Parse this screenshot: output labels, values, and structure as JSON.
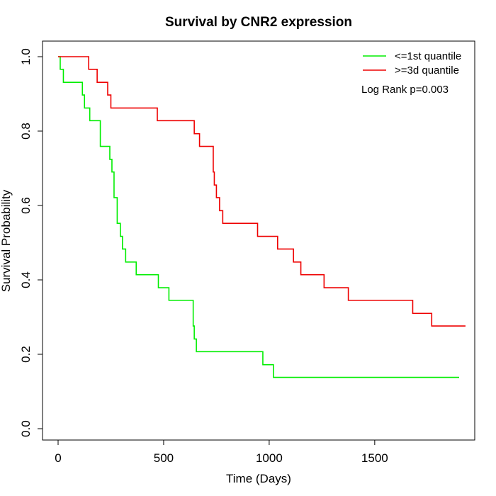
{
  "chart_data": {
    "type": "line",
    "title": "Survival by CNR2 expression",
    "xlabel": "Time (Days)",
    "ylabel": "Survival Probability",
    "xlim": [
      0,
      1950
    ],
    "ylim": [
      0,
      1.05
    ],
    "x_ticks": [
      0,
      500,
      1000,
      1500
    ],
    "x_tick_labels": [
      "0",
      "500",
      "1000",
      "1500"
    ],
    "y_ticks": [
      0,
      0.2,
      0.4,
      0.6,
      0.8,
      1.0
    ],
    "y_tick_labels": [
      "0.0",
      "0.2",
      "0.4",
      "0.6",
      "0.8",
      "1.0"
    ],
    "grid": false,
    "legend_position": "top-right",
    "annotation": "Log Rank p=0.003",
    "series": [
      {
        "name": "<=1st quantile",
        "color": "#00ee00",
        "x": [
          0,
          10,
          25,
          115,
          125,
          150,
          200,
          245,
          255,
          265,
          280,
          295,
          305,
          320,
          335,
          370,
          475,
          525,
          640,
          645,
          655,
          660,
          970,
          1020,
          1900
        ],
        "y": [
          1.0,
          0.966,
          0.931,
          0.897,
          0.862,
          0.828,
          0.759,
          0.724,
          0.69,
          0.621,
          0.552,
          0.517,
          0.483,
          0.448,
          0.448,
          0.414,
          0.379,
          0.345,
          0.276,
          0.241,
          0.207,
          0.207,
          0.172,
          0.138,
          0.138
        ]
      },
      {
        "name": ">=3d quantile",
        "color": "#ee0000",
        "x": [
          0,
          145,
          185,
          235,
          250,
          470,
          645,
          670,
          735,
          740,
          750,
          765,
          780,
          800,
          945,
          1040,
          1115,
          1150,
          1260,
          1375,
          1680,
          1770,
          1930
        ],
        "y": [
          1.0,
          0.966,
          0.931,
          0.897,
          0.862,
          0.828,
          0.793,
          0.759,
          0.69,
          0.655,
          0.621,
          0.586,
          0.552,
          0.552,
          0.517,
          0.483,
          0.448,
          0.414,
          0.379,
          0.345,
          0.31,
          0.276,
          0.276
        ]
      }
    ]
  }
}
